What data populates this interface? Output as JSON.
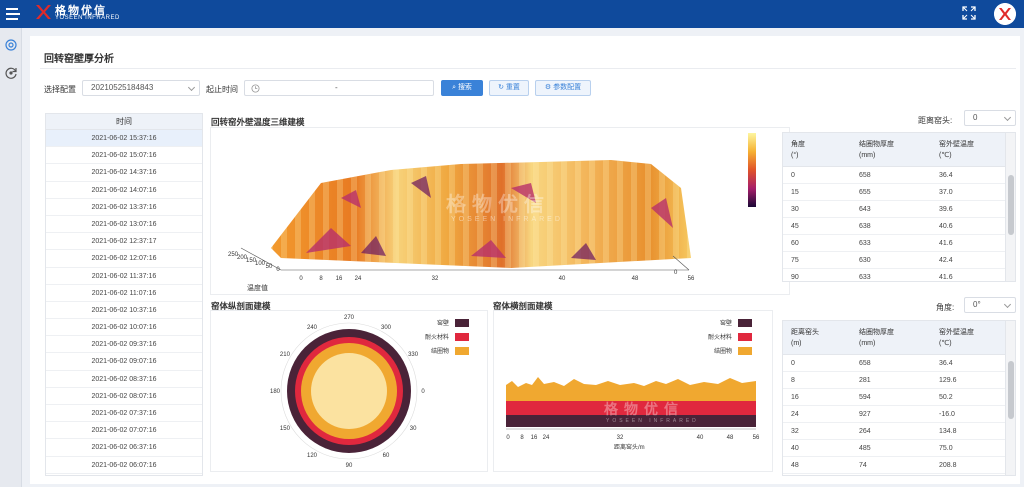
{
  "header": {
    "logo_cn": "格物优信",
    "logo_en": "YOSEEN INFRARED"
  },
  "page": {
    "title": "回转窑壁厚分析"
  },
  "filters": {
    "config_label": "选择配置",
    "config_value": "20210525184843",
    "time_label": "起止时间",
    "time_sep": "-",
    "search_label": "搜索",
    "reset_label": "重置",
    "param_label": "参数配置"
  },
  "time_list": {
    "header": "时间",
    "items": [
      "2021-06-02 15:37:16",
      "2021-06-02 15:07:16",
      "2021-06-02 14:37:16",
      "2021-06-02 14:07:16",
      "2021-06-02 13:37:16",
      "2021-06-02 13:07:16",
      "2021-06-02 12:37:17",
      "2021-06-02 12:07:16",
      "2021-06-02 11:37:16",
      "2021-06-02 11:07:16",
      "2021-06-02 10:37:16",
      "2021-06-02 10:07:16",
      "2021-06-02 09:37:16",
      "2021-06-02 09:07:16",
      "2021-06-02 08:37:16",
      "2021-06-02 08:07:16",
      "2021-06-02 07:37:16",
      "2021-06-02 07:07:16",
      "2021-06-02 06:37:16",
      "2021-06-02 06:07:16"
    ]
  },
  "model3d": {
    "title": "回转窑外壁温度三维建模",
    "axis_label": "温度值",
    "x_ticks": [
      "0",
      "8",
      "16",
      "24",
      "32",
      "40",
      "48",
      "56"
    ],
    "y_ticks": [
      "250",
      "200",
      "150",
      "100",
      "50",
      "0"
    ],
    "corner_tick": "0"
  },
  "distance_select": {
    "label": "距离窑头:",
    "value": "0"
  },
  "angle_table": {
    "headers": [
      [
        "角度",
        "(°)"
      ],
      [
        "结圈物厚度",
        "(mm)"
      ],
      [
        "窑外壁温度",
        "(℃)"
      ]
    ],
    "rows": [
      [
        "0",
        "658",
        "36.4"
      ],
      [
        "15",
        "655",
        "37.0"
      ],
      [
        "30",
        "643",
        "39.6"
      ],
      [
        "45",
        "638",
        "40.6"
      ],
      [
        "60",
        "633",
        "41.6"
      ],
      [
        "75",
        "630",
        "42.4"
      ],
      [
        "90",
        "633",
        "41.6"
      ]
    ]
  },
  "angle_select": {
    "label": "角度:",
    "value": "0°"
  },
  "distance_table": {
    "headers": [
      [
        "距离窑头",
        "(m)"
      ],
      [
        "结圈物厚度",
        "(mm)"
      ],
      [
        "窑外壁温度",
        "(℃)"
      ]
    ],
    "rows": [
      [
        "0",
        "658",
        "36.4"
      ],
      [
        "8",
        "281",
        "129.6"
      ],
      [
        "16",
        "594",
        "50.2"
      ],
      [
        "24",
        "927",
        "-16.0"
      ],
      [
        "32",
        "264",
        "134.8"
      ],
      [
        "40",
        "485",
        "75.0"
      ],
      [
        "48",
        "74",
        "208.8"
      ]
    ]
  },
  "longitudinal": {
    "title": "窑体纵剖面建模",
    "angles": [
      "270",
      "300",
      "330",
      "0",
      "30",
      "60",
      "90",
      "120",
      "150",
      "180",
      "210",
      "240"
    ],
    "legend": [
      "窑壁",
      "耐火材料",
      "结圈物"
    ]
  },
  "transverse": {
    "title": "窑体横剖面建模",
    "legend": [
      "窑壁",
      "耐火材料",
      "结圈物"
    ],
    "x_ticks": [
      "0",
      "8",
      "16",
      "24",
      "32",
      "40",
      "48",
      "56"
    ],
    "x_label": "距离窑头/m"
  },
  "watermark": {
    "cn": "格物优信",
    "en": "YOSEEN INFRARED"
  },
  "colors": {
    "header_bg": "#0f4a9c",
    "kiln_wall": "#4a2338",
    "refractory": "#e0283e",
    "ring_deposit": "#f0a830",
    "primary": "#3a82d8"
  }
}
